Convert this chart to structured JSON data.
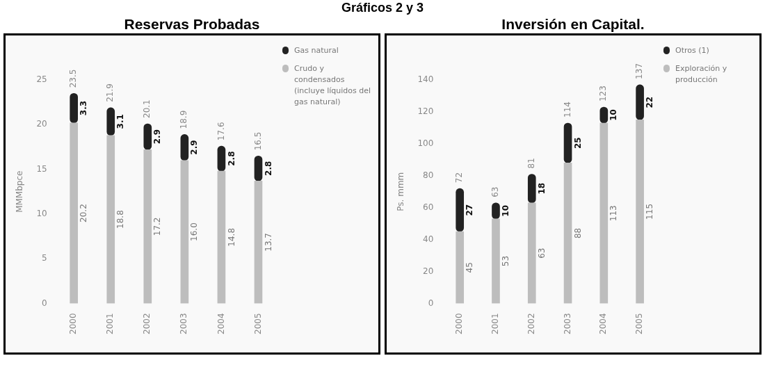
{
  "chart_data": [
    {
      "type": "bar",
      "title": "Reservas Probadas",
      "annotations": [
        "Gráficos 2 y 3"
      ],
      "ylabel": "MMMbpce",
      "categories": [
        "2000",
        "2001",
        "2002",
        "2003",
        "2004",
        "2005"
      ],
      "stacked": true,
      "ylim": [
        0,
        25
      ],
      "yticks": [
        0,
        5,
        10,
        15,
        20,
        25
      ],
      "legend": "top right",
      "series": [
        {
          "name": "Crudo y condensados (incluye líquidos del gas natural)",
          "color": "#bdbdbd",
          "values": [
            20.2,
            18.8,
            17.2,
            16.0,
            14.8,
            13.7
          ],
          "value_labels": [
            "20.2",
            "18.8",
            "17.2",
            "16.0",
            "14.8",
            "13.7"
          ]
        },
        {
          "name": "Gas natural",
          "color": "#222222",
          "values": [
            3.3,
            3.1,
            2.9,
            2.9,
            2.8,
            2.8
          ],
          "value_labels": [
            "3.3",
            "3.1",
            "2.9",
            "2.9",
            "2.8",
            "2.8"
          ]
        }
      ],
      "totals": [
        "23.5",
        "21.9",
        "20.1",
        "18.9",
        "17.6",
        "16.5"
      ]
    },
    {
      "type": "bar",
      "title": "Inversión en Capital.",
      "ylabel": "Ps. mmm",
      "categories": [
        "2000",
        "2001",
        "2002",
        "2003",
        "2004",
        "2005"
      ],
      "stacked": true,
      "ylim": [
        0,
        140
      ],
      "yticks": [
        0,
        20,
        40,
        60,
        80,
        100,
        120,
        140
      ],
      "legend": "top right",
      "data_labels": true,
      "series": [
        {
          "name": "Exploración y producción",
          "color": "#bdbdbd",
          "values": [
            45,
            53,
            63,
            88,
            113,
            115
          ]
        },
        {
          "name": "Otros (1)",
          "color": "#222222",
          "values": [
            27,
            10,
            18,
            25,
            10,
            22
          ]
        }
      ],
      "totals": [
        "72",
        "63",
        "81",
        "114",
        "123",
        "137"
      ]
    }
  ]
}
